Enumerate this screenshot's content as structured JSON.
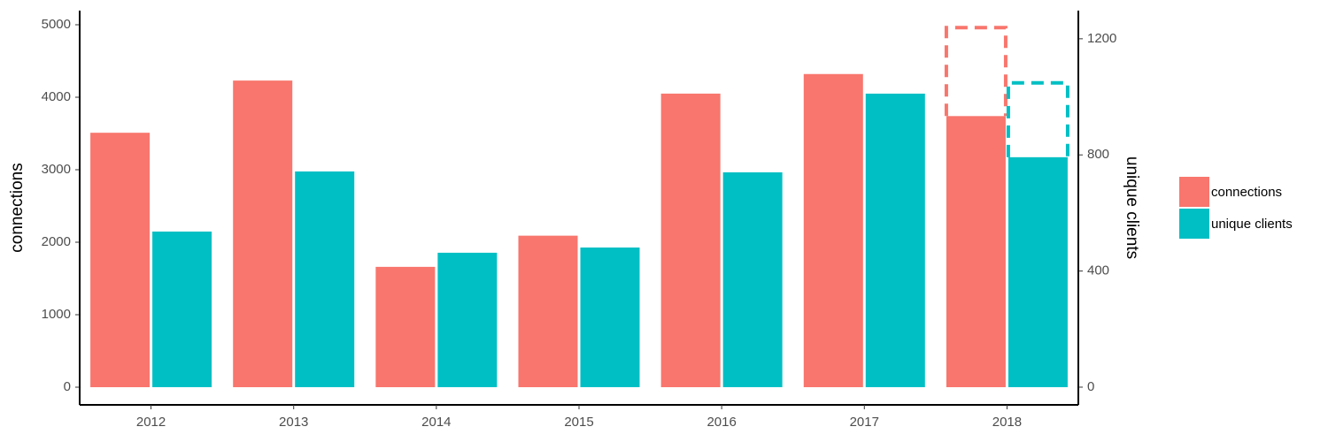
{
  "chart_data": {
    "type": "bar",
    "categories": [
      "2012",
      "2013",
      "2014",
      "2015",
      "2016",
      "2017",
      "2018"
    ],
    "series": [
      {
        "name": "connections",
        "color": "#F8766D",
        "axis": "y",
        "values": [
          3510,
          4230,
          1660,
          2090,
          4050,
          4320,
          3740
        ],
        "projected": [
          null,
          null,
          null,
          null,
          null,
          null,
          4960
        ]
      },
      {
        "name": "unique clients",
        "color": "#00BFC4",
        "axis": "y2",
        "values": [
          536,
          743,
          463,
          481,
          740,
          1011,
          792
        ],
        "projected": [
          null,
          null,
          null,
          null,
          null,
          null,
          1048
        ]
      }
    ],
    "ylabel": "connections",
    "y2label": "unique clients",
    "ylim": [
      -244,
      5195
    ],
    "yticks": [
      0,
      1000,
      2000,
      3000,
      4000,
      5000
    ],
    "y2lim": [
      -61,
      1297
    ],
    "y2ticks": [
      0,
      400,
      800,
      1200
    ],
    "legend": "right"
  }
}
